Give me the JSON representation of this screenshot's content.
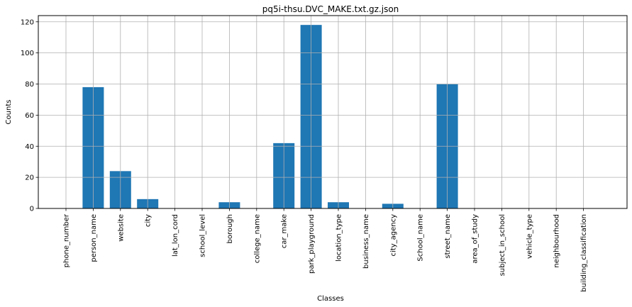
{
  "chart_data": {
    "type": "bar",
    "title": "pq5i-thsu.DVC_MAKE.txt.gz.json",
    "xlabel": "Classes",
    "ylabel": "Counts",
    "ylim": [
      0,
      124
    ],
    "yticks": [
      0,
      20,
      40,
      60,
      80,
      100,
      120
    ],
    "grid": true,
    "bar_color": "#1f77b4",
    "categories": [
      "phone_number",
      "person_name",
      "website",
      "city",
      "lat_lon_cord",
      "school_level",
      "borough",
      "college_name",
      "car_make",
      "park_playground",
      "location_type",
      "business_name",
      "city_agency",
      "School_name",
      "street_name",
      "area_of_study",
      "subject_in_school",
      "vehicle_type",
      "neighbourhood",
      "building_classification"
    ],
    "values": [
      0,
      78,
      24,
      6,
      0,
      0,
      4,
      0,
      42,
      118,
      4,
      0,
      3,
      0,
      80,
      0,
      0,
      0,
      0,
      0
    ]
  }
}
